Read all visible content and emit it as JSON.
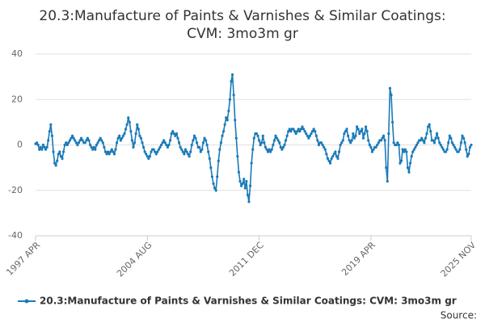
{
  "chart_data": {
    "type": "line",
    "title": "20.3:Manufacture of Paints & Varnishes & Similar Coatings:",
    "subtitle": "CVM: 3mo3m gr",
    "source": "Source:",
    "categories": [
      "1997 APR",
      null,
      null,
      null,
      null,
      null,
      null,
      null,
      null,
      null,
      null,
      null,
      null,
      null,
      null,
      null,
      null,
      null,
      null,
      null,
      null,
      null,
      null,
      null,
      null,
      null,
      null,
      null,
      null,
      null,
      null,
      null,
      null,
      null,
      null,
      null,
      null,
      null,
      null,
      null,
      null,
      null,
      null,
      null,
      null,
      null,
      null,
      null,
      null,
      null,
      null,
      null,
      null,
      null,
      null,
      null,
      null,
      null,
      null,
      null,
      null,
      null,
      null,
      null,
      null,
      null,
      null,
      null,
      null,
      null,
      null,
      null,
      null,
      null,
      null,
      null,
      null,
      null,
      null,
      null,
      null,
      null,
      null,
      null,
      null,
      null,
      null,
      null,
      "2004 AUG",
      null,
      null,
      null,
      null,
      null,
      null,
      null,
      null,
      null,
      null,
      null,
      null,
      null,
      null,
      null,
      null,
      null,
      null,
      null,
      null,
      null,
      null,
      null,
      null,
      null,
      null,
      null,
      null,
      null,
      null,
      null,
      null,
      null,
      null,
      null,
      null,
      null,
      null,
      null,
      null,
      null,
      null,
      null,
      null,
      null,
      null,
      null,
      null,
      null,
      null,
      null,
      null,
      null,
      null,
      null,
      null,
      null,
      null,
      null,
      null,
      null,
      null,
      null,
      null,
      null,
      null,
      null,
      null,
      null,
      null,
      null,
      null,
      null,
      null,
      null,
      null,
      null,
      null,
      null,
      null,
      null,
      null,
      null,
      null,
      null,
      null,
      null,
      "2011 DEC",
      null,
      null,
      null,
      null,
      null,
      null,
      null,
      null,
      null,
      null,
      null,
      null,
      null,
      null,
      null,
      null,
      null,
      null,
      null,
      null,
      null,
      null,
      null,
      null,
      null,
      null,
      null,
      null,
      null,
      null,
      null,
      null,
      null,
      null,
      null,
      null,
      null,
      null,
      null,
      null,
      null,
      null,
      null,
      null,
      null,
      null,
      null,
      null,
      null,
      null,
      null,
      null,
      null,
      null,
      null,
      null,
      null,
      null,
      null,
      null,
      null,
      null,
      null,
      null,
      null,
      null,
      null,
      null,
      null,
      null,
      null,
      null,
      null,
      null,
      null,
      null,
      null,
      null,
      null,
      null,
      null,
      null,
      null,
      null,
      null,
      null,
      null,
      "2019 APR",
      null,
      null,
      null,
      null,
      null,
      null,
      null,
      null,
      null,
      null,
      null,
      null,
      null,
      null,
      null,
      null,
      null,
      null,
      null,
      null,
      null,
      null,
      null,
      null,
      null,
      null,
      null,
      null,
      null,
      null,
      null,
      null,
      null,
      null,
      null,
      null,
      null,
      null,
      null,
      null,
      null,
      null,
      null,
      null,
      null,
      null,
      null,
      null,
      null,
      null,
      null,
      null,
      null,
      null,
      null,
      null,
      null,
      null,
      null,
      null,
      null,
      null,
      null,
      null,
      null,
      null,
      null,
      null,
      null,
      null,
      null,
      null,
      null,
      null,
      null,
      null,
      null,
      null,
      "2025 NOV"
    ],
    "series": [
      {
        "name": "20.3:Manufacture of Paints & Varnishes & Similar Coatings: CVM: 3mo3m gr",
        "color": "#1a7ab8",
        "values": [
          0.5,
          1,
          0,
          -2,
          -1,
          -2,
          0,
          -1,
          -2,
          -1,
          2,
          6,
          9,
          4,
          -3,
          -8,
          -9,
          -7,
          -4,
          -3,
          -5,
          -6,
          -3,
          0,
          1,
          0,
          1,
          2,
          3,
          4,
          3,
          2,
          1,
          0,
          1,
          2,
          3,
          2,
          1,
          1,
          2,
          3,
          2,
          0,
          -1,
          -2,
          -1,
          -2,
          0,
          1,
          2,
          3,
          2,
          1,
          -1,
          -3,
          -4,
          -3,
          -4,
          -3,
          -2,
          -3,
          -4,
          -2,
          1,
          3,
          4,
          2,
          3,
          4,
          5,
          7,
          9,
          12,
          10,
          6,
          2,
          -1,
          1,
          5,
          9,
          7,
          4,
          3,
          1,
          -1,
          -3,
          -4,
          -5,
          -6,
          -5,
          -3,
          -2,
          -2,
          -3,
          -4,
          -3,
          -2,
          -1,
          0,
          1,
          2,
          1,
          0,
          -1,
          0,
          2,
          5,
          6,
          5,
          4,
          5,
          3,
          1,
          -1,
          -2,
          -3,
          -4,
          -2,
          -3,
          -4,
          -5,
          -3,
          0,
          2,
          4,
          3,
          1,
          -1,
          -1,
          -3,
          -2,
          1,
          3,
          2,
          0,
          -3,
          -6,
          -10,
          -14,
          -17,
          -19,
          -20,
          -14,
          -7,
          -2,
          1,
          4,
          6,
          9,
          12,
          11,
          15,
          20,
          28,
          31,
          22,
          11,
          3,
          -5,
          -12,
          -16,
          -18,
          -17,
          -15,
          -19,
          -16,
          -22,
          -25,
          -18,
          -8,
          -2,
          3,
          5,
          5,
          4,
          2,
          0,
          1,
          4,
          1,
          -1,
          -2,
          -3,
          -2,
          -3,
          -2,
          0,
          2,
          4,
          3,
          2,
          1,
          -1,
          -2,
          -1,
          0,
          2,
          4,
          6,
          7,
          6,
          7,
          7,
          6,
          5,
          6,
          7,
          6,
          7,
          8,
          7,
          6,
          5,
          4,
          3,
          4,
          5,
          6,
          7,
          6,
          4,
          2,
          0,
          1,
          1,
          0,
          -1,
          -2,
          -4,
          -6,
          -7,
          -8,
          -6,
          -5,
          -4,
          -3,
          -5,
          -6,
          -3,
          0,
          1,
          2,
          5,
          6,
          7,
          4,
          2,
          1,
          2,
          5,
          3,
          4,
          8,
          7,
          5,
          6,
          7,
          3,
          5,
          8,
          6,
          2,
          0,
          -1,
          -3,
          -2,
          -1,
          -1,
          0,
          1,
          2,
          2,
          3,
          4,
          2,
          -10,
          -16,
          5,
          25,
          22,
          10,
          1,
          0,
          0,
          1,
          0,
          -8,
          -7,
          -2,
          -3,
          -2,
          -3,
          -10,
          -12,
          -8,
          -5,
          -3,
          -2,
          -1,
          0,
          1,
          2,
          2,
          3,
          2,
          1,
          3,
          5,
          8,
          9,
          6,
          2,
          2,
          1,
          3,
          5,
          3,
          1,
          0,
          -1,
          -2,
          -3,
          -3,
          -2,
          1,
          4,
          3,
          1,
          0,
          -1,
          -2,
          -3,
          -3,
          -2,
          1,
          4,
          3,
          1,
          -2,
          -5,
          -4,
          -1,
          0
        ]
      }
    ],
    "ylim": [
      -40,
      40
    ],
    "yticks": [
      -40,
      -20,
      0,
      20,
      40
    ],
    "grid": true
  }
}
